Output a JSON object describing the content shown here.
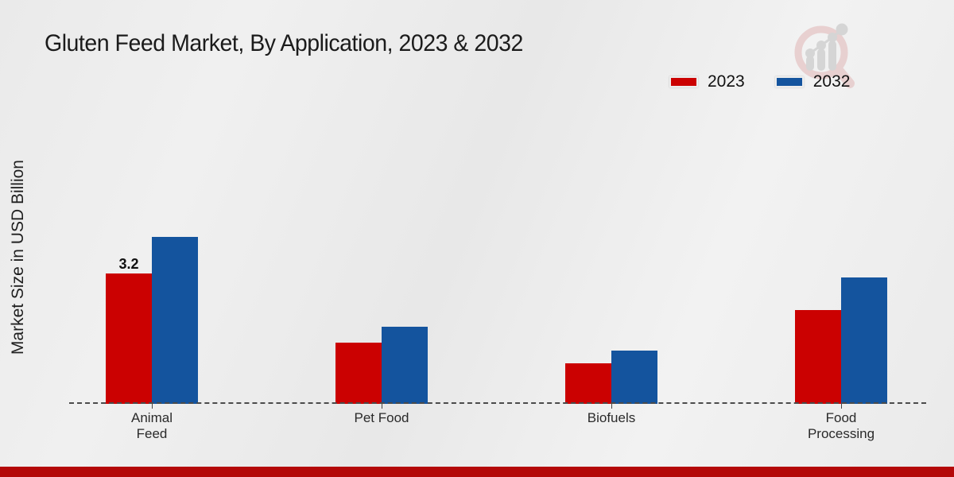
{
  "page": {
    "footer_accent_color": "#b40808"
  },
  "chart_data": {
    "type": "bar",
    "title": "Gluten Feed Market, By Application, 2023 & 2032",
    "ylabel": "Market Size in USD Billion",
    "xlabel": "",
    "categories": [
      "Animal Feed",
      "Pet Food",
      "Biofuels",
      "Food Processing"
    ],
    "series": [
      {
        "name": "2023",
        "color": "#cb0101",
        "values": [
          3.2,
          1.5,
          1.0,
          2.3
        ]
      },
      {
        "name": "2032",
        "color": "#14549e",
        "values": [
          4.1,
          1.9,
          1.3,
          3.1
        ]
      }
    ],
    "value_labels": [
      {
        "series": "2023",
        "category": "Animal Feed",
        "text": "3.2"
      }
    ],
    "ylim": [
      0,
      4.5
    ],
    "grid": false,
    "legend_position": "top-right",
    "baseline_style": "dashed"
  },
  "watermark": {
    "icon": "analytics-magnifier-logo"
  }
}
